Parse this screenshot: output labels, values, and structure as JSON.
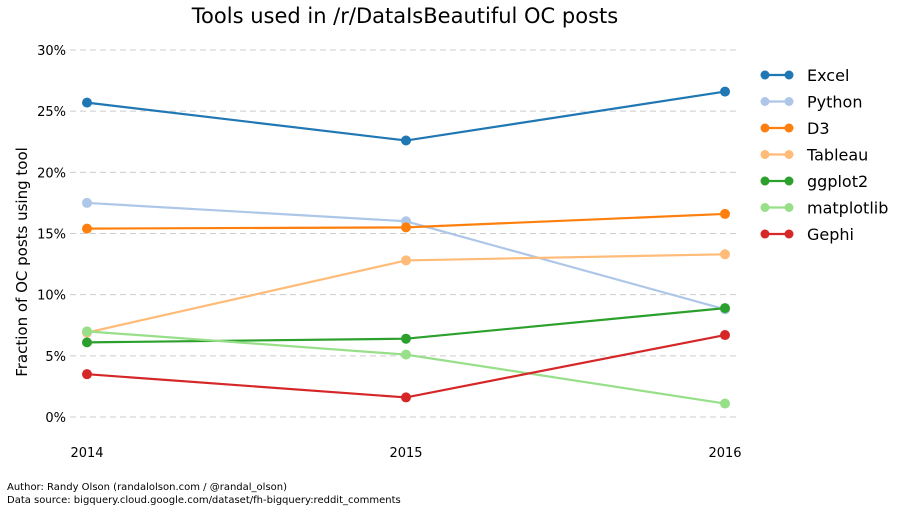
{
  "chart_data": {
    "type": "line",
    "title": "Tools used in /r/DataIsBeautiful OC posts",
    "ylabel": "Fraction of OC posts using tool",
    "xlabel": "",
    "x": [
      "2014",
      "2015",
      "2016"
    ],
    "ylim": [
      -0.02,
      0.3
    ],
    "yticks": [
      0,
      0.05,
      0.1,
      0.15,
      0.2,
      0.25,
      0.3
    ],
    "ytick_labels": [
      "0%",
      "5%",
      "10%",
      "15%",
      "20%",
      "25%",
      "30%"
    ],
    "grid": "horizontal-dashed",
    "legend_position": "right",
    "series": [
      {
        "name": "Excel",
        "color": "#1f77b4",
        "values": [
          0.257,
          0.226,
          0.266
        ]
      },
      {
        "name": "Python",
        "color": "#aec7e8",
        "values": [
          0.175,
          0.16,
          0.088
        ]
      },
      {
        "name": "D3",
        "color": "#ff7f0e",
        "values": [
          0.154,
          0.155,
          0.166
        ]
      },
      {
        "name": "Tableau",
        "color": "#ffbb78",
        "values": [
          0.069,
          0.128,
          0.133
        ]
      },
      {
        "name": "ggplot2",
        "color": "#2ca02c",
        "values": [
          0.061,
          0.064,
          0.089
        ]
      },
      {
        "name": "matplotlib",
        "color": "#98df8a",
        "values": [
          0.07,
          0.051,
          0.011
        ]
      },
      {
        "name": "Gephi",
        "color": "#d62728",
        "values": [
          0.035,
          0.016,
          0.067
        ]
      }
    ]
  },
  "footer": {
    "author": "Author: Randy Olson (randalolson.com / @randal_olson)",
    "source": "Data source: bigquery.cloud.google.com/dataset/fh-bigquery:reddit_comments"
  }
}
